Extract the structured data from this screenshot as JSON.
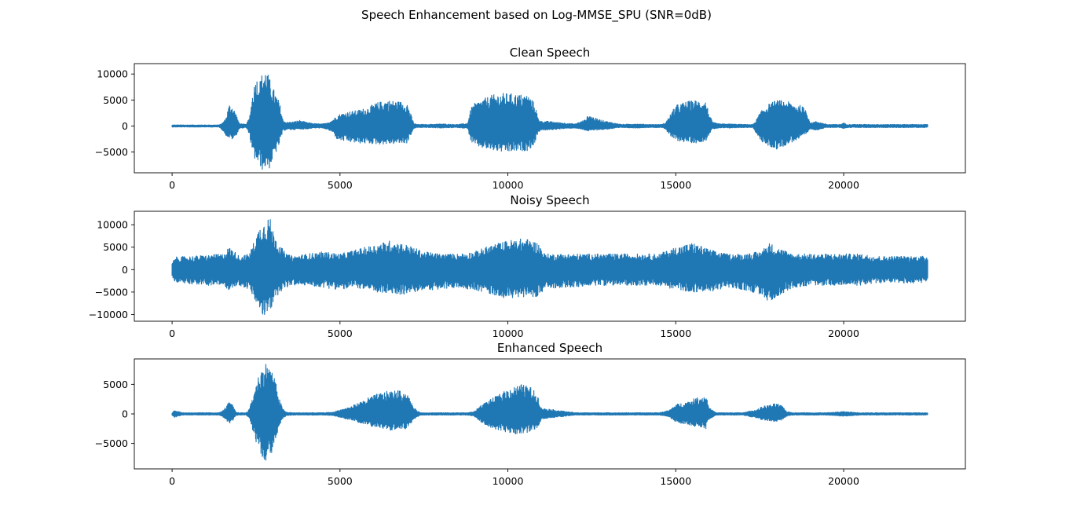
{
  "figure": {
    "title": "Speech Enhancement based on Log-MMSE_SPU (SNR=0dB)"
  },
  "chart_data": [
    {
      "type": "line",
      "title": "Clean Speech",
      "color": "#1f77b4",
      "xlim": [
        -1125,
        23625
      ],
      "ylim": [
        -9000,
        12000
      ],
      "xticks": [
        0,
        5000,
        10000,
        15000,
        20000
      ],
      "yticks": [
        -5000,
        0,
        5000,
        10000
      ],
      "n_samples": 22500,
      "envelope": {
        "x": [
          0,
          1400,
          1500,
          1600,
          1700,
          1800,
          1900,
          2000,
          2200,
          2300,
          2400,
          2500,
          2600,
          2700,
          2800,
          2900,
          3000,
          3100,
          3200,
          3300,
          3400,
          3600,
          3800,
          4000,
          4200,
          4400,
          4600,
          4800,
          4900,
          5000,
          5200,
          5500,
          5800,
          6100,
          6400,
          6700,
          7000,
          7200,
          7300,
          7400,
          7600,
          8000,
          8500,
          8800,
          8900,
          9000,
          9200,
          9500,
          9800,
          10000,
          10300,
          10600,
          10800,
          10900,
          11000,
          11200,
          11500,
          12000,
          12300,
          12400,
          12600,
          13000,
          13400,
          13800,
          14200,
          14600,
          14700,
          14800,
          15000,
          15300,
          15600,
          15900,
          16000,
          16100,
          16300,
          16600,
          17000,
          17300,
          17400,
          17500,
          17700,
          18000,
          18300,
          18500,
          18700,
          18900,
          19000,
          19200,
          19500,
          19900,
          20000,
          20100,
          20200,
          20500,
          21000,
          21500,
          22000,
          22500
        ],
        "max": [
          200,
          200,
          600,
          1500,
          4200,
          3800,
          2500,
          500,
          300,
          1500,
          6500,
          9500,
          8500,
          10500,
          11000,
          9200,
          7500,
          6000,
          4500,
          1200,
          700,
          800,
          1100,
          700,
          500,
          400,
          500,
          1300,
          2000,
          2300,
          2700,
          3000,
          3500,
          4500,
          5000,
          4800,
          4500,
          500,
          300,
          300,
          300,
          400,
          300,
          500,
          3500,
          4300,
          5000,
          5900,
          6300,
          6300,
          6100,
          6000,
          4400,
          1500,
          900,
          900,
          700,
          400,
          1200,
          2200,
          1500,
          800,
          300,
          400,
          300,
          300,
          700,
          1800,
          4000,
          4700,
          5000,
          4800,
          2200,
          700,
          400,
          400,
          300,
          300,
          1200,
          2500,
          4000,
          5000,
          4800,
          4300,
          4000,
          3200,
          600,
          900,
          300,
          300,
          600,
          300,
          300,
          300,
          300,
          300,
          300,
          300
        ],
        "min": [
          -200,
          -200,
          -800,
          -1800,
          -2300,
          -2600,
          -2000,
          -500,
          -300,
          -1500,
          -5800,
          -6800,
          -7500,
          -8600,
          -7800,
          -8200,
          -6500,
          -5000,
          -3500,
          -1000,
          -700,
          -700,
          -600,
          -600,
          -400,
          -400,
          -600,
          -1300,
          -2500,
          -2800,
          -3000,
          -3300,
          -3400,
          -3500,
          -3500,
          -3400,
          -3300,
          -500,
          -300,
          -300,
          -300,
          -400,
          -300,
          -500,
          -3000,
          -3700,
          -4200,
          -4700,
          -5000,
          -5100,
          -4900,
          -4700,
          -3500,
          -1200,
          -800,
          -800,
          -600,
          -400,
          -800,
          -1000,
          -800,
          -600,
          -300,
          -400,
          -300,
          -300,
          -600,
          -1800,
          -2800,
          -3100,
          -3300,
          -2800,
          -1500,
          -600,
          -400,
          -400,
          -300,
          -300,
          -1500,
          -2700,
          -3800,
          -4500,
          -3600,
          -3000,
          -2500,
          -1500,
          -600,
          -800,
          -300,
          -300,
          -500,
          -300,
          -300,
          -300,
          -300,
          -300,
          -300,
          -300
        ]
      }
    },
    {
      "type": "line",
      "title": "Noisy Speech",
      "color": "#1f77b4",
      "xlim": [
        -1125,
        23625
      ],
      "ylim": [
        -11500,
        13000
      ],
      "xticks": [
        0,
        5000,
        10000,
        15000,
        20000
      ],
      "yticks": [
        -10000,
        -5000,
        0,
        5000,
        10000
      ],
      "n_samples": 22500,
      "envelope": {
        "x": [
          0,
          100,
          1000,
          1500,
          1700,
          1800,
          2000,
          2300,
          2500,
          2600,
          2700,
          2800,
          2900,
          3000,
          3200,
          3400,
          3600,
          4000,
          4500,
          5000,
          5500,
          6000,
          6500,
          7000,
          7500,
          8000,
          8500,
          9000,
          9500,
          10000,
          10500,
          10900,
          11100,
          11500,
          12000,
          12500,
          13000,
          13500,
          14000,
          14500,
          15000,
          15500,
          16000,
          16500,
          17000,
          17500,
          17800,
          18000,
          18500,
          19000,
          19500,
          20000,
          20500,
          21000,
          21500,
          22000,
          22500
        ],
        "max": [
          1500,
          2800,
          3200,
          3500,
          5000,
          4500,
          3000,
          3500,
          7500,
          9500,
          10500,
          11000,
          12000,
          9000,
          5500,
          3500,
          3000,
          3500,
          4000,
          3500,
          4500,
          5500,
          6500,
          5500,
          4000,
          3500,
          3500,
          4000,
          5500,
          6500,
          7000,
          6000,
          3500,
          3500,
          3500,
          3500,
          3500,
          3500,
          3500,
          3500,
          5000,
          6000,
          4500,
          3500,
          3500,
          4000,
          6000,
          5000,
          3500,
          3500,
          3500,
          3500,
          3500,
          3000,
          3000,
          3000,
          3000
        ],
        "min": [
          -1500,
          -2800,
          -3500,
          -3500,
          -4500,
          -4000,
          -3500,
          -4500,
          -7500,
          -9000,
          -10500,
          -10000,
          -10500,
          -7500,
          -5000,
          -4000,
          -3500,
          -3500,
          -4000,
          -4500,
          -4000,
          -5000,
          -5500,
          -5500,
          -4500,
          -4500,
          -4000,
          -4500,
          -5500,
          -6500,
          -6000,
          -6000,
          -4500,
          -4000,
          -4000,
          -3500,
          -3500,
          -3500,
          -3500,
          -3500,
          -4500,
          -5000,
          -5000,
          -4000,
          -4500,
          -5500,
          -7500,
          -6000,
          -4000,
          -3500,
          -3500,
          -3500,
          -3500,
          -3000,
          -3000,
          -3000,
          -3000
        ]
      }
    },
    {
      "type": "line",
      "title": "Enhanced Speech",
      "color": "#1f77b4",
      "xlim": [
        -1125,
        23625
      ],
      "ylim": [
        -9300,
        9300
      ],
      "xticks": [
        0,
        5000,
        10000,
        15000,
        20000
      ],
      "yticks": [
        -5000,
        0,
        5000
      ],
      "n_samples": 22500,
      "envelope": {
        "x": [
          0,
          50,
          150,
          300,
          1400,
          1500,
          1600,
          1700,
          1800,
          1900,
          2000,
          2200,
          2300,
          2400,
          2500,
          2600,
          2700,
          2800,
          2900,
          3000,
          3100,
          3200,
          3300,
          3400,
          3600,
          4000,
          4500,
          4800,
          5000,
          5300,
          5600,
          6000,
          6400,
          6700,
          7000,
          7200,
          7400,
          8000,
          8800,
          9000,
          9200,
          9500,
          9800,
          10100,
          10400,
          10700,
          10900,
          11000,
          12000,
          14500,
          14800,
          15000,
          15300,
          15600,
          15900,
          16000,
          16200,
          17000,
          17400,
          17600,
          17800,
          18000,
          18200,
          18300,
          18500,
          19500,
          20000,
          20500,
          21000,
          22000,
          22500
        ],
        "max": [
          200,
          600,
          500,
          200,
          200,
          500,
          1200,
          2000,
          1500,
          300,
          200,
          200,
          800,
          3000,
          5000,
          7000,
          8000,
          8700,
          8000,
          7000,
          5000,
          2500,
          800,
          300,
          200,
          200,
          200,
          300,
          700,
          1200,
          2000,
          3200,
          3800,
          4000,
          3500,
          1000,
          200,
          200,
          200,
          400,
          1500,
          2500,
          3500,
          4500,
          5000,
          4500,
          3000,
          1000,
          200,
          200,
          600,
          1600,
          2000,
          2700,
          3200,
          1000,
          200,
          200,
          700,
          1300,
          1500,
          1800,
          1200,
          400,
          200,
          200,
          400,
          200,
          200,
          200,
          200
        ],
        "min": [
          -200,
          -600,
          -500,
          -200,
          -200,
          -500,
          -1000,
          -1600,
          -1200,
          -300,
          -200,
          -200,
          -800,
          -2800,
          -4800,
          -6500,
          -7500,
          -8600,
          -7500,
          -6000,
          -4000,
          -2000,
          -800,
          -300,
          -200,
          -200,
          -200,
          -300,
          -600,
          -1000,
          -1500,
          -2200,
          -2700,
          -2900,
          -2500,
          -900,
          -200,
          -200,
          -200,
          -400,
          -1500,
          -2300,
          -2900,
          -3300,
          -3500,
          -3000,
          -2200,
          -900,
          -200,
          -200,
          -500,
          -1400,
          -1800,
          -2200,
          -2500,
          -900,
          -200,
          -200,
          -700,
          -1100,
          -1200,
          -1400,
          -1000,
          -400,
          -200,
          -200,
          -400,
          -200,
          -200,
          -200,
          -200
        ]
      }
    }
  ]
}
